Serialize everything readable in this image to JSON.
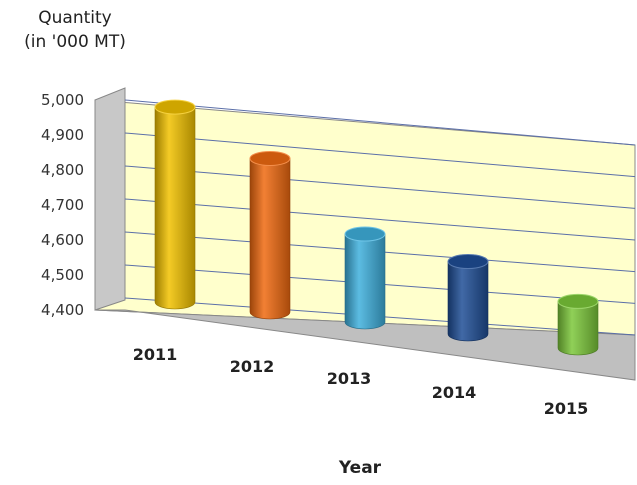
{
  "chart_data": {
    "type": "bar",
    "title": "",
    "ylabel_line1": "Quantity",
    "ylabel_line2": "(in '000 MT)",
    "xlabel": "Year",
    "categories": [
      "2011",
      "2012",
      "2013",
      "2014",
      "2015"
    ],
    "values": [
      4965,
      4845,
      4655,
      4610,
      4535
    ],
    "ylim": [
      4400,
      5000
    ],
    "yticks": [
      "4,400",
      "4,500",
      "4,600",
      "4,700",
      "4,800",
      "4,900",
      "5,000"
    ],
    "grid": true,
    "legend": "none",
    "colors": [
      "#F2C200",
      "#F06A10",
      "#3FB0DD",
      "#1F4E96",
      "#7CC83A"
    ],
    "wall_color": "#FFFFCC",
    "floor_color": "#BFBFBF"
  }
}
